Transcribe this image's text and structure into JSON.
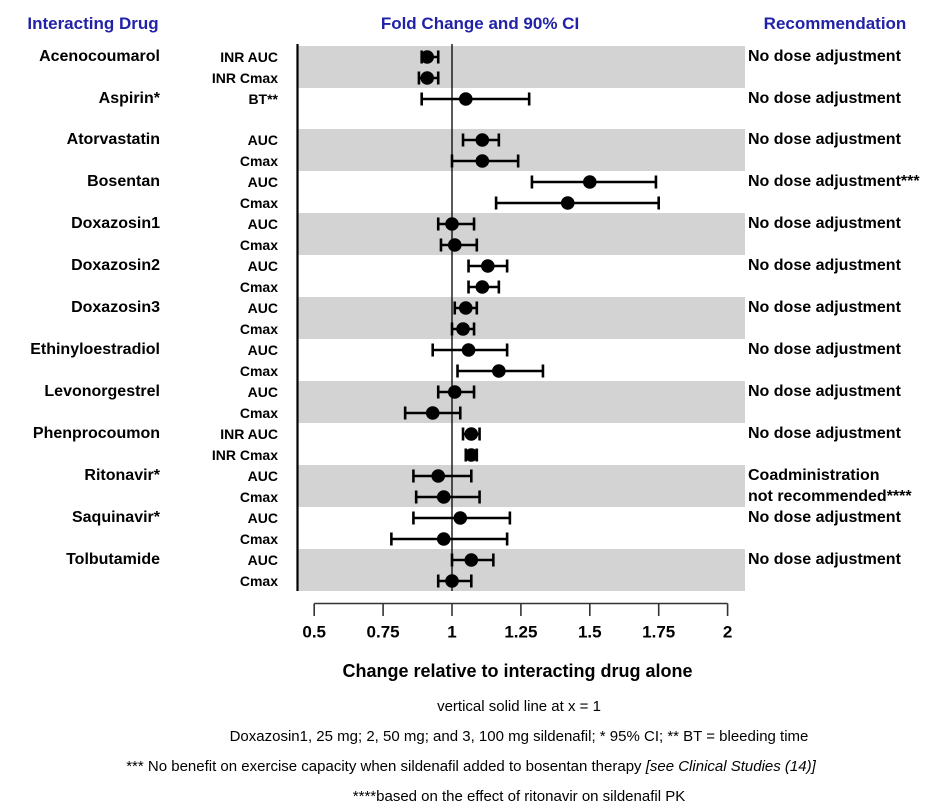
{
  "headers": {
    "left": "Interacting Drug",
    "center": "Fold Change and 90% CI",
    "right": "Recommendation"
  },
  "colors": {
    "header_blue": "#2222a8",
    "band_gray": "#d3d3d3",
    "marker_black": "#000000",
    "axis_dark": "#333333"
  },
  "footnotes": {
    "line1": "vertical solid line at x = 1",
    "line2": "Doxazosin1, 25 mg; 2, 50 mg; and 3, 100 mg sildenafil; * 95% CI; ** BT = bleeding time",
    "line3_main": "*** No benefit on exercise capacity when sildenafil added to bosentan therapy  ",
    "line3_italic": "[see Clinical Studies (14)]",
    "line4": "****based on the effect of ritonavir on sildenafil PK"
  },
  "chart_data": {
    "type": "forest-errorbar",
    "ci_level": "90% CI",
    "x_axis": {
      "label": "Change relative to interacting drug alone",
      "ticks": [
        0.5,
        0.75,
        1,
        1.25,
        1.5,
        1.75,
        2
      ],
      "tick_labels": [
        "0.5",
        "0.75",
        "1",
        "1.25",
        "1.5",
        "1.75",
        "2"
      ],
      "range": [
        0.5,
        2
      ],
      "reference_line_x": 1
    },
    "groups": [
      {
        "drug": "Acenocoumarol",
        "shaded": true,
        "recommendation_lines": [
          "No dose adjustment"
        ],
        "rows": [
          {
            "metric": "INR AUC",
            "value": 0.91,
            "lo": 0.89,
            "hi": 0.95
          },
          {
            "metric": "INR Cmax",
            "value": 0.91,
            "lo": 0.88,
            "hi": 0.95
          }
        ]
      },
      {
        "drug": "Aspirin*",
        "shaded": false,
        "recommendation_lines": [
          "No dose adjustment"
        ],
        "extra_gap_after": true,
        "rows": [
          {
            "metric": "BT**",
            "value": 1.05,
            "lo": 0.89,
            "hi": 1.28
          }
        ]
      },
      {
        "drug": "Atorvastatin",
        "shaded": true,
        "recommendation_lines": [
          "No dose adjustment"
        ],
        "rows": [
          {
            "metric": "AUC",
            "value": 1.11,
            "lo": 1.04,
            "hi": 1.17
          },
          {
            "metric": "Cmax",
            "value": 1.11,
            "lo": 1.0,
            "hi": 1.24
          }
        ]
      },
      {
        "drug": "Bosentan",
        "shaded": false,
        "recommendation_lines": [
          "No dose adjustment***"
        ],
        "rows": [
          {
            "metric": "AUC",
            "value": 1.5,
            "lo": 1.29,
            "hi": 1.74
          },
          {
            "metric": "Cmax",
            "value": 1.42,
            "lo": 1.16,
            "hi": 1.75
          }
        ]
      },
      {
        "drug": "Doxazosin1",
        "shaded": true,
        "recommendation_lines": [
          "No dose adjustment"
        ],
        "rows": [
          {
            "metric": "AUC",
            "value": 1.0,
            "lo": 0.95,
            "hi": 1.08
          },
          {
            "metric": "Cmax",
            "value": 1.01,
            "lo": 0.96,
            "hi": 1.09
          }
        ]
      },
      {
        "drug": "Doxazosin2",
        "shaded": false,
        "recommendation_lines": [
          "No dose adjustment"
        ],
        "rows": [
          {
            "metric": "AUC",
            "value": 1.13,
            "lo": 1.06,
            "hi": 1.2
          },
          {
            "metric": "Cmax",
            "value": 1.11,
            "lo": 1.06,
            "hi": 1.17
          }
        ]
      },
      {
        "drug": "Doxazosin3",
        "shaded": true,
        "recommendation_lines": [
          "No dose adjustment"
        ],
        "rows": [
          {
            "metric": "AUC",
            "value": 1.05,
            "lo": 1.01,
            "hi": 1.09
          },
          {
            "metric": "Cmax",
            "value": 1.04,
            "lo": 1.0,
            "hi": 1.08
          }
        ]
      },
      {
        "drug": "Ethinyloestradiol",
        "shaded": false,
        "recommendation_lines": [
          "No dose adjustment"
        ],
        "rows": [
          {
            "metric": "AUC",
            "value": 1.06,
            "lo": 0.93,
            "hi": 1.2
          },
          {
            "metric": "Cmax",
            "value": 1.17,
            "lo": 1.02,
            "hi": 1.33
          }
        ]
      },
      {
        "drug": "Levonorgestrel",
        "shaded": true,
        "recommendation_lines": [
          "No dose adjustment"
        ],
        "rows": [
          {
            "metric": "AUC",
            "value": 1.01,
            "lo": 0.95,
            "hi": 1.08
          },
          {
            "metric": "Cmax",
            "value": 0.93,
            "lo": 0.83,
            "hi": 1.03
          }
        ]
      },
      {
        "drug": "Phenprocoumon",
        "shaded": false,
        "recommendation_lines": [
          "No dose adjustment"
        ],
        "rows": [
          {
            "metric": "INR AUC",
            "value": 1.07,
            "lo": 1.04,
            "hi": 1.1
          },
          {
            "metric": "INR Cmax",
            "value": 1.07,
            "lo": 1.05,
            "hi": 1.09
          }
        ]
      },
      {
        "drug": "Ritonavir*",
        "shaded": true,
        "recommendation_lines": [
          "Coadministration",
          "not recommended****"
        ],
        "rows": [
          {
            "metric": "AUC",
            "value": 0.95,
            "lo": 0.86,
            "hi": 1.07
          },
          {
            "metric": "Cmax",
            "value": 0.97,
            "lo": 0.87,
            "hi": 1.1
          }
        ]
      },
      {
        "drug": "Saquinavir*",
        "shaded": false,
        "recommendation_lines": [
          "No dose adjustment"
        ],
        "rows": [
          {
            "metric": "AUC",
            "value": 1.03,
            "lo": 0.86,
            "hi": 1.21
          },
          {
            "metric": "Cmax",
            "value": 0.97,
            "lo": 0.78,
            "hi": 1.2
          }
        ]
      },
      {
        "drug": "Tolbutamide",
        "shaded": true,
        "recommendation_lines": [
          "No dose adjustment"
        ],
        "rows": [
          {
            "metric": "AUC",
            "value": 1.07,
            "lo": 1.0,
            "hi": 1.15
          },
          {
            "metric": "Cmax",
            "value": 1.0,
            "lo": 0.95,
            "hi": 1.07
          }
        ]
      }
    ]
  }
}
